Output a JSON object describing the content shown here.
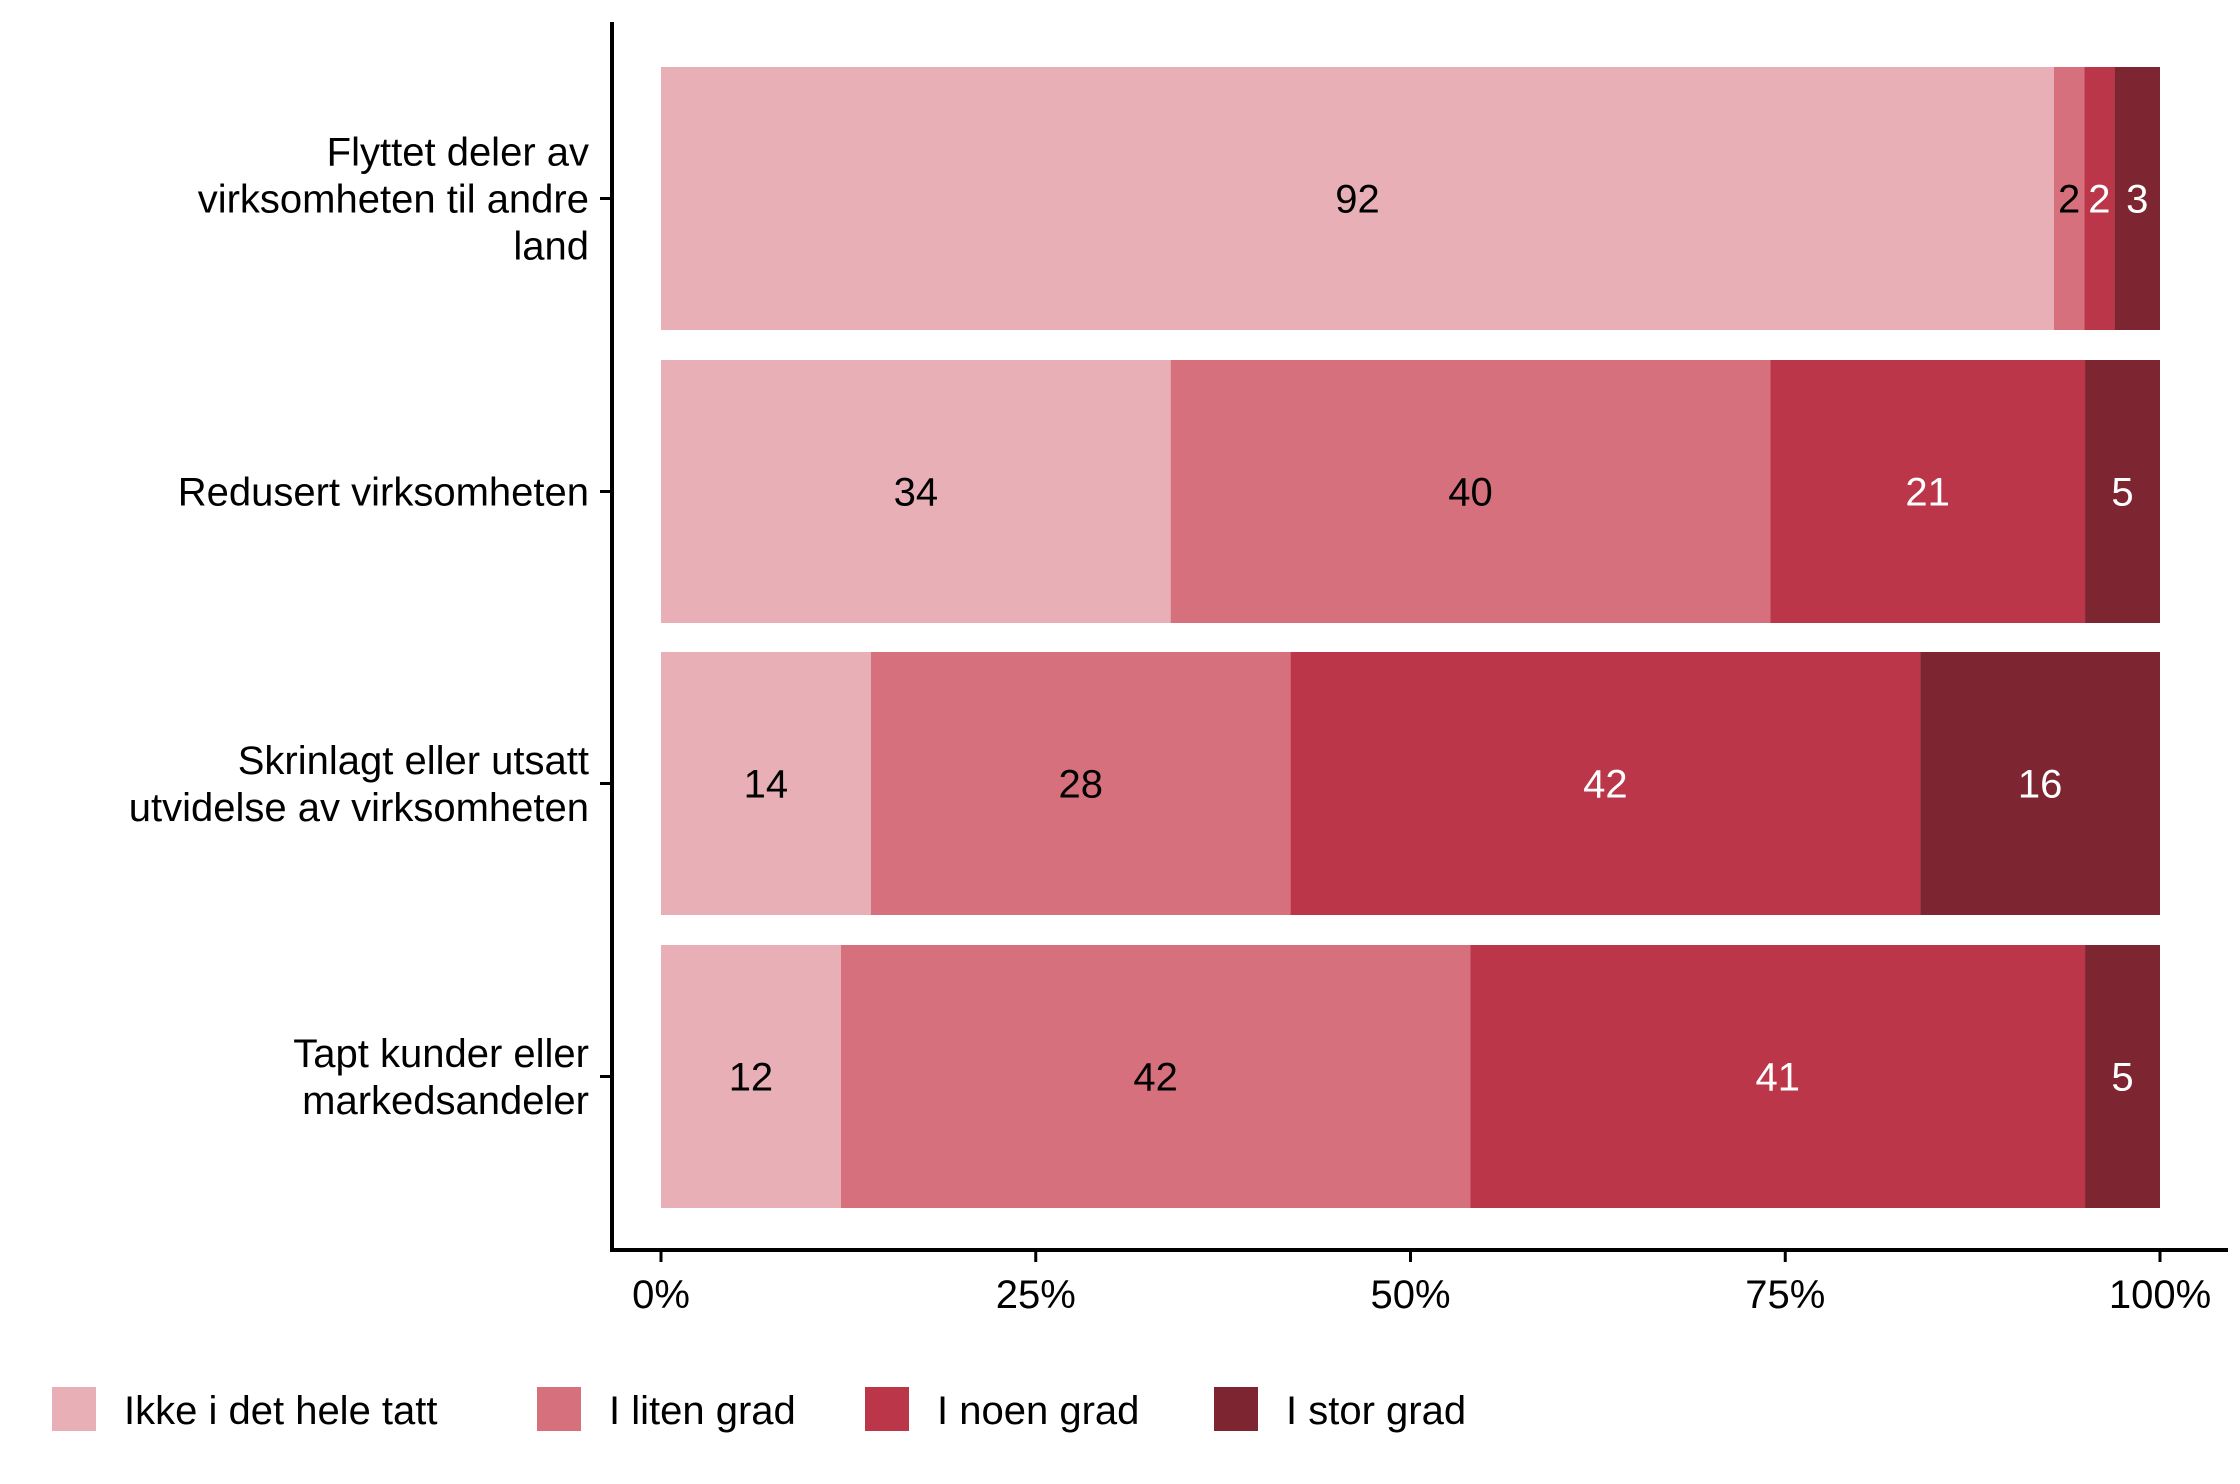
{
  "chart_data": {
    "type": "bar",
    "orientation": "horizontal",
    "stacked": "percent",
    "categories": [
      [
        "Flyttet deler av",
        "virksomheten til andre",
        "land"
      ],
      [
        "Redusert virksomheten"
      ],
      [
        "Skrinlagt eller utsatt",
        "utvidelse av virksomheten"
      ],
      [
        "Tapt kunder eller",
        "markedsandeler"
      ]
    ],
    "series": [
      {
        "name": "Ikke i det hele tatt",
        "color": "#E8B0B6",
        "label_color": "#000000",
        "values": [
          92,
          34,
          14,
          12
        ]
      },
      {
        "name": "I liten grad",
        "color": "#D6707C",
        "label_color": "#000000",
        "values": [
          2,
          40,
          28,
          42
        ]
      },
      {
        "name": "I noen grad",
        "color": "#BB3649",
        "label_color": "#FFFFFF",
        "values": [
          2,
          21,
          42,
          41
        ]
      },
      {
        "name": "I stor grad",
        "color": "#7D2530",
        "label_color": "#FFFFFF",
        "values": [
          3,
          5,
          16,
          5
        ]
      }
    ],
    "xticks": [
      "0%",
      "25%",
      "50%",
      "75%",
      "100%"
    ],
    "xlim": [
      0,
      100
    ],
    "xlabel": "",
    "ylabel": "",
    "grid": false,
    "legend_position": "bottom"
  }
}
